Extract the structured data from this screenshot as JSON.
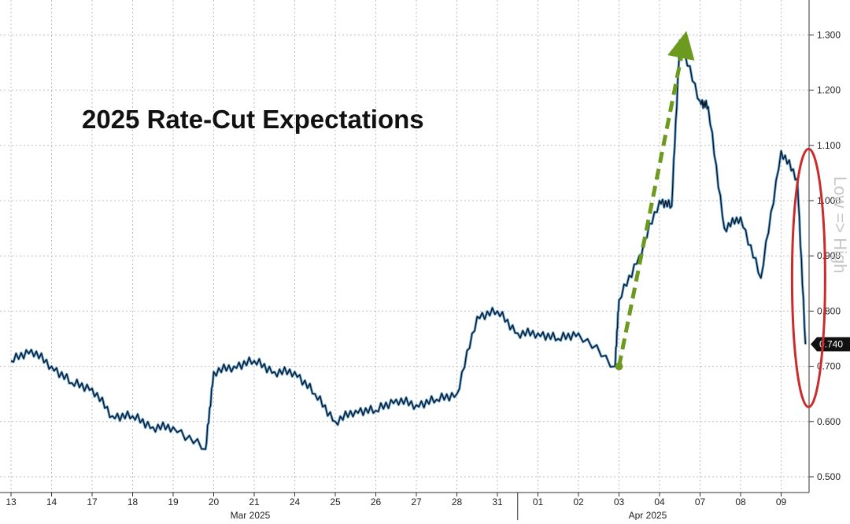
{
  "chart_data": {
    "type": "line",
    "title": "2025 Rate-Cut Expectations",
    "xlabel": "",
    "ylabel": "Low => High",
    "ylim": [
      0.48,
      1.36
    ],
    "y_ticks": [
      0.5,
      0.6,
      0.7,
      0.8,
      0.9,
      1.0,
      1.1,
      1.2,
      1.3
    ],
    "y_tick_labels": [
      "0.500",
      "0.600",
      "0.700",
      "0.800",
      "0.900",
      "1.000",
      "1.100",
      "1.200",
      "1.300"
    ],
    "last_value": 0.74,
    "last_value_label": "0.740",
    "grid": true,
    "x_tick_labels": [
      "13",
      "14",
      "17",
      "18",
      "19",
      "20",
      "21",
      "24",
      "25",
      "26",
      "27",
      "28",
      "31",
      "01",
      "02",
      "03",
      "04",
      "07",
      "08",
      "09"
    ],
    "month_labels": [
      "Mar 2025",
      "Apr 2025"
    ],
    "series": [
      {
        "x": [
          "13",
          "13.5",
          "14",
          "14.5",
          "17",
          "17.5",
          "18",
          "18.5",
          "19",
          "19.8",
          "20",
          "20.5",
          "21",
          "21.5",
          "24",
          "24.5",
          "25",
          "25.5",
          "26",
          "26.5",
          "27",
          "27.5",
          "28",
          "28.5",
          "31",
          "31.5",
          "01",
          "01.5",
          "02",
          "02.9",
          "03",
          "03.5",
          "04",
          "04.3",
          "04.5",
          "07",
          "07.2",
          "07.6",
          "08",
          "08.5",
          "09",
          "09.4",
          "09.6"
        ],
        "y": [
          0.71,
          0.73,
          0.7,
          0.67,
          0.66,
          0.61,
          0.61,
          0.59,
          0.59,
          0.55,
          0.69,
          0.7,
          0.71,
          0.69,
          0.69,
          0.65,
          0.6,
          0.62,
          0.62,
          0.64,
          0.63,
          0.64,
          0.65,
          0.79,
          0.8,
          0.76,
          0.76,
          0.75,
          0.76,
          0.7,
          0.82,
          0.9,
          1.0,
          0.99,
          1.29,
          1.18,
          1.17,
          0.95,
          0.97,
          0.86,
          1.09,
          1.04,
          0.74
        ],
        "color": "#111111"
      }
    ],
    "annotations": {
      "arrow_color": "#6b9a1f",
      "ellipse_color": "#cc2b2b",
      "trend_arrow_from": {
        "x": "03",
        "y": 0.7
      },
      "trend_arrow_to": {
        "x": "04.5",
        "y": 1.3
      },
      "highlight_ellipse_center": {
        "x": "09.6",
        "y": 0.86
      }
    }
  }
}
